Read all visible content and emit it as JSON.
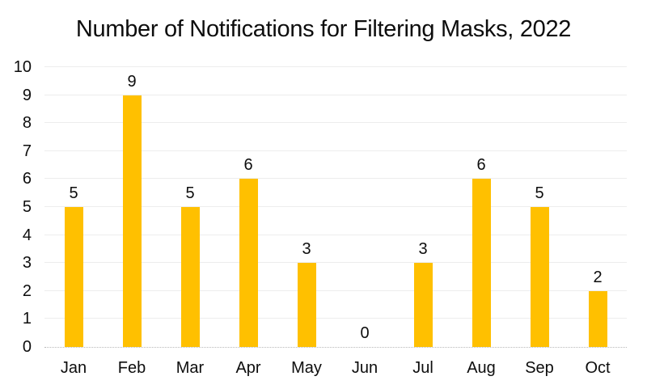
{
  "title": "Number of Notifications for Filtering Masks, 2022",
  "colors": {
    "bar": "#FFC000",
    "gridline": "#EDEDED",
    "axis_baseline": "#B9B9B9",
    "text": "#0D0D0D",
    "background": "#FFFFFF"
  },
  "chart_data": {
    "type": "bar",
    "title": "Number of Notifications for Filtering Masks, 2022",
    "categories": [
      "Jan",
      "Feb",
      "Mar",
      "Apr",
      "May",
      "Jun",
      "Jul",
      "Aug",
      "Sep",
      "Oct"
    ],
    "values": [
      5,
      9,
      5,
      6,
      3,
      0,
      3,
      6,
      5,
      2
    ],
    "data_labels": [
      "5",
      "9",
      "5",
      "6",
      "3",
      "0",
      "3",
      "6",
      "5",
      "2"
    ],
    "xlabel": "",
    "ylabel": "",
    "ylim": [
      0,
      10
    ],
    "yticks": [
      0,
      1,
      2,
      3,
      4,
      5,
      6,
      7,
      8,
      9,
      10
    ],
    "ytick_labels": [
      "0",
      "1",
      "2",
      "3",
      "4",
      "5",
      "6",
      "7",
      "8",
      "9",
      "10"
    ],
    "grid": true,
    "legend": false,
    "bar_color": "#FFC000"
  }
}
